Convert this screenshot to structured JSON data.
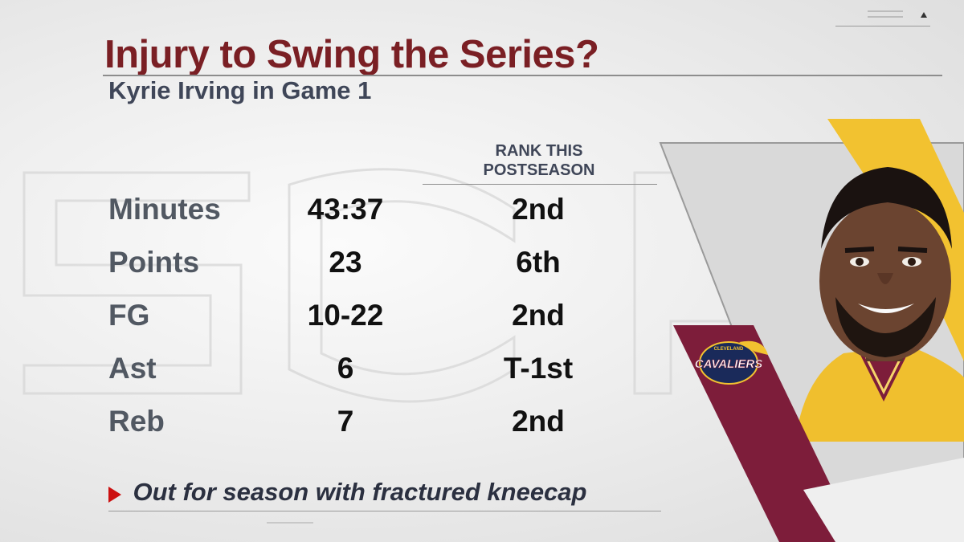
{
  "header": {
    "title": "Injury to Swing the Series?",
    "subtitle": "Kyrie Irving in Game 1"
  },
  "table": {
    "rank_header_line1": "RANK THIS",
    "rank_header_line2": "POSTSEASON",
    "rows": [
      {
        "label": "Minutes",
        "value": "43:37",
        "rank": "2nd"
      },
      {
        "label": "Points",
        "value": "23",
        "rank": "6th"
      },
      {
        "label": "FG",
        "value": "10-22",
        "rank": "2nd"
      },
      {
        "label": "Ast",
        "value": "6",
        "rank": "T-1st"
      },
      {
        "label": "Reb",
        "value": "7",
        "rank": "2nd"
      }
    ]
  },
  "note": {
    "text": "Out for season with fractured kneecap"
  },
  "logo": {
    "top_text": "CLEVELAND",
    "main_text": "CAVALIERS"
  },
  "colors": {
    "title": "#7a1f24",
    "wine": "#7d1d3a",
    "gold": "#f2c230",
    "navy": "#1a2a5a",
    "arrow": "#cc1111"
  },
  "icons": {
    "menu": "menu-lines-icon",
    "collapse": "triangle-up-icon",
    "bullet": "red-triangle-bullet-icon"
  }
}
